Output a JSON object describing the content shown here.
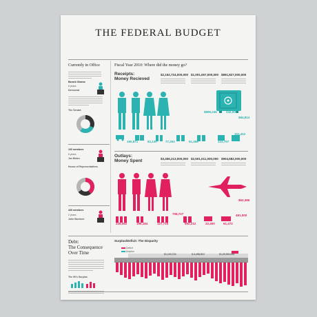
{
  "poster": {
    "title": "THE FEDERAL BUDGET",
    "colors": {
      "teal": "#2ab3b1",
      "pink": "#e0215e",
      "dark": "#333333",
      "grey": "#b5b5b5"
    },
    "left": {
      "currently_in_office_label": "Currently in Office",
      "president_name": "Barack Obama",
      "years_text": "6 years",
      "party": "Democrat",
      "senate_heading": "The Senate",
      "members_text": "100 members",
      "senate_years": "6 years",
      "vp_name": "Joe Biden",
      "house_heading": "House of Representatives",
      "house_members": "435 members",
      "house_years": "2 years",
      "speaker_name": "John Boehner"
    },
    "fiscal_heading": "Fiscal Year 2010: Where did the money go?",
    "receipts": {
      "heading_line1": "Receipts:",
      "heading_line2": "Money Recieved",
      "totals": [
        "$2,162,724,000,000",
        "$1,001,067,000,000",
        "$891,827,000,000"
      ],
      "sub_values": [
        "$899,245",
        "242,002",
        "$84,814"
      ],
      "small_stats": [
        "190,871",
        "82,130",
        "77,262",
        "51,456",
        "123,757",
        "151,412"
      ]
    },
    "outlays": {
      "heading_line1": "Outlays:",
      "heading_line2": "Money Spent",
      "totals": [
        "$3,456,213,000,000",
        "$2,501,011,000,000",
        "$904,682,000,000"
      ],
      "sub_values": [
        "$62,386",
        "491,000"
      ],
      "small_stats": [
        "228,082",
        "196,184",
        "708,727",
        "127,715",
        "652,212",
        "22,400",
        "61,472"
      ]
    },
    "debt": {
      "heading_line1": "Debt:",
      "heading_line2": "The Consequence",
      "heading_line3": "Over Time",
      "surplus_heading": "The 90's Surplus"
    },
    "surplus_deficit": {
      "heading": "Surplus/Deficit: The Disparity",
      "legend": [
        "Deficit",
        "Surplus"
      ],
      "figures": [
        "$1,103,724",
        "$-3,498,513",
        "$1,29,000,000"
      ]
    }
  }
}
